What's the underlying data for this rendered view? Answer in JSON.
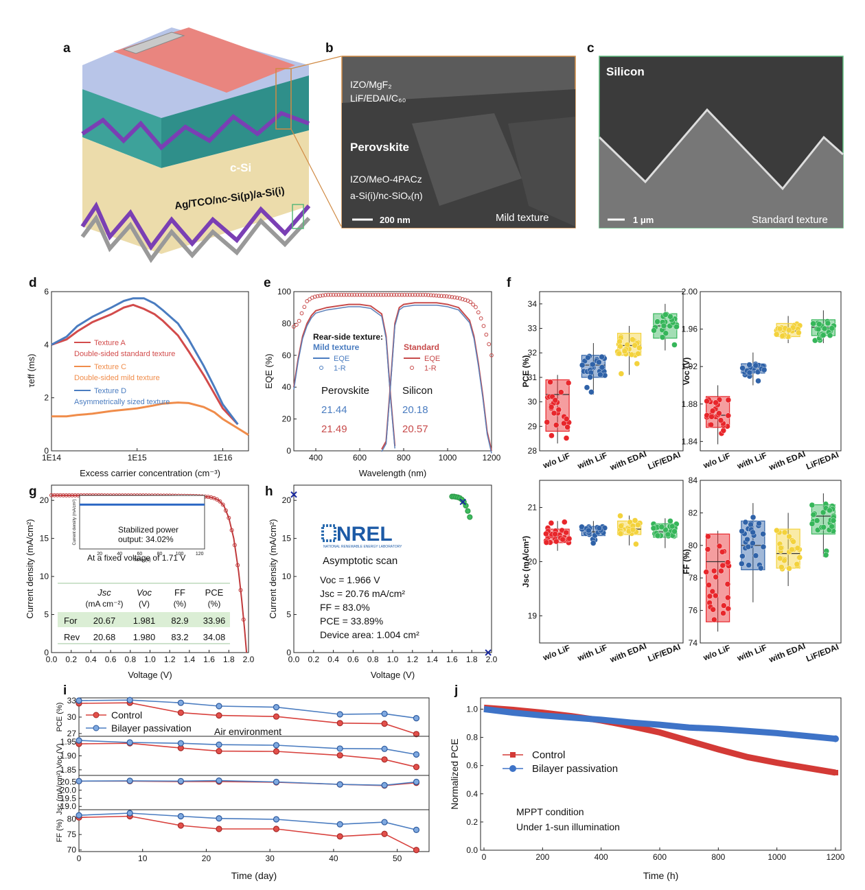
{
  "panels": {
    "a": {
      "letter": "a",
      "label_csi": "c-Si",
      "label_rear": "Ag/TCO/nc-Si(p)/a-Si(i)"
    },
    "b": {
      "letter": "b",
      "labels": [
        "IZO/MgF₂",
        "LiF/EDAI/C₆₀",
        "Perovskite",
        "IZO/MeO-4PACz",
        "a-Si(i)/nc-SiOₓ(n)"
      ],
      "scale": "200 nm",
      "caption": "Mild texture"
    },
    "c": {
      "letter": "c",
      "title": "Silicon",
      "scale": "1 μm",
      "caption": "Standard texture"
    }
  },
  "colors": {
    "red": "#d24b4b",
    "blue": "#4a7cc0",
    "orange": "#f08c4a",
    "navy": "#2d5a9e",
    "green": "#36b65a",
    "yellow": "#f3d23c",
    "lightgreen": "#dbeed5"
  },
  "chart_data": [
    {
      "id": "d",
      "letter": "d",
      "type": "line",
      "xlabel": "Excess carrier concentration (cm⁻³)",
      "ylabel": "τeff (ms)",
      "xscale": "log",
      "xlim": [
        100000000000000.0,
        2e+16
      ],
      "ylim": [
        0,
        6
      ],
      "xticks": [
        "1E14",
        "1E15",
        "1E16"
      ],
      "yticks": [
        "0",
        "2",
        "4",
        "6"
      ],
      "series": [
        {
          "name": "Texture A",
          "desc": "Double-sided standard texture",
          "color": "#d24b4b",
          "x": [
            100000000000000.0,
            150000000000000.0,
            200000000000000.0,
            300000000000000.0,
            500000000000000.0,
            700000000000000.0,
            900000000000000.0,
            1200000000000000.0,
            1600000000000000.0,
            2000000000000000.0,
            3000000000000000.0,
            4000000000000000.0,
            6000000000000000.0,
            8000000000000000.0,
            1e+16,
            1.5e+16
          ],
          "y": [
            4.0,
            4.2,
            4.5,
            4.85,
            5.15,
            5.4,
            5.5,
            5.35,
            5.15,
            4.9,
            4.35,
            3.75,
            2.85,
            2.15,
            1.6,
            1.0
          ]
        },
        {
          "name": "Texture C",
          "desc": "Double-sided mild texture",
          "color": "#f08c4a",
          "x": [
            100000000000000.0,
            150000000000000.0,
            200000000000000.0,
            300000000000000.0,
            500000000000000.0,
            700000000000000.0,
            1000000000000000.0,
            1500000000000000.0,
            2000000000000000.0,
            3000000000000000.0,
            4000000000000000.0,
            6000000000000000.0,
            8000000000000000.0,
            1e+16,
            1.5e+16,
            2e+16
          ],
          "y": [
            1.3,
            1.3,
            1.35,
            1.4,
            1.5,
            1.55,
            1.6,
            1.7,
            1.78,
            1.82,
            1.8,
            1.65,
            1.45,
            1.2,
            0.85,
            0.6
          ]
        },
        {
          "name": "Texture D",
          "desc": "Asymmetrically sized texture",
          "color": "#4a7cc0",
          "x": [
            100000000000000.0,
            150000000000000.0,
            200000000000000.0,
            300000000000000.0,
            500000000000000.0,
            700000000000000.0,
            900000000000000.0,
            1200000000000000.0,
            1600000000000000.0,
            2000000000000000.0,
            3000000000000000.0,
            4000000000000000.0,
            6000000000000000.0,
            8000000000000000.0,
            1e+16,
            1.5e+16
          ],
          "y": [
            4.0,
            4.3,
            4.7,
            5.05,
            5.4,
            5.65,
            5.75,
            5.75,
            5.55,
            5.3,
            4.8,
            4.2,
            3.2,
            2.4,
            1.75,
            1.0
          ]
        }
      ]
    },
    {
      "id": "e",
      "letter": "e",
      "type": "line",
      "xlabel": "Wavelength (nm)",
      "ylabel": "EQE (%)",
      "xlim": [
        300,
        1200
      ],
      "ylim": [
        0,
        100
      ],
      "xticks": [
        "400",
        "600",
        "800",
        "1000",
        "1200"
      ],
      "yticks": [
        "0",
        "20",
        "40",
        "60",
        "80",
        "100"
      ],
      "legend_title": "Rear-side texture:",
      "legend_mild": "Mild texture",
      "legend_standard": "Standard",
      "eqe_label": "EQE",
      "r_label": "1-R",
      "jsc_labels": {
        "perovskite": "Perovskite",
        "silicon": "Silicon",
        "perovskite_mild": "21.44",
        "perovskite_std": "21.49",
        "silicon_mild": "20.18",
        "silicon_std": "20.57"
      },
      "series": [
        {
          "name": "Perovskite EQE",
          "x": [
            300,
            320,
            340,
            360,
            380,
            400,
            450,
            500,
            550,
            600,
            650,
            700,
            720,
            740,
            760
          ],
          "y": [
            40,
            58,
            72,
            80,
            85,
            88,
            90,
            91,
            92,
            92,
            91,
            86,
            72,
            35,
            3
          ]
        },
        {
          "name": "Silicon EQE",
          "x": [
            700,
            720,
            740,
            760,
            780,
            800,
            850,
            900,
            950,
            1000,
            1050,
            1100,
            1120,
            1140,
            1160,
            1180,
            1200
          ],
          "y": [
            1,
            6,
            42,
            80,
            90,
            92,
            93,
            93,
            93,
            92,
            90,
            82,
            72,
            55,
            35,
            12,
            0
          ]
        },
        {
          "name": "1-R",
          "x": [
            300,
            320,
            340,
            360,
            380,
            400,
            450,
            500,
            600,
            700,
            800,
            900,
            1000,
            1050,
            1100,
            1130,
            1150,
            1170,
            1190,
            1200
          ],
          "y": [
            78,
            80,
            88,
            94,
            96,
            97,
            98,
            98,
            98,
            98,
            98,
            98,
            97,
            96,
            94,
            90,
            84,
            76,
            66,
            60
          ]
        }
      ]
    },
    {
      "id": "f",
      "letter": "f",
      "type": "box",
      "categories": [
        "w/o LiF",
        "with LiF",
        "with EDAI",
        "LiF/EDAI"
      ],
      "colors": [
        "#e8262b",
        "#2f62a8",
        "#f3d23c",
        "#36b65a"
      ],
      "subplots": [
        {
          "ylabel": "PCE (%)",
          "ylim": [
            28,
            34.5
          ],
          "yticks": [
            "28",
            "29",
            "30",
            "31",
            "32",
            "33",
            "34"
          ],
          "boxes": [
            {
              "min": 28.3,
              "q1": 28.8,
              "med": 30.3,
              "q3": 30.9,
              "max": 31.1
            },
            {
              "min": 30.3,
              "q1": 31.0,
              "med": 31.5,
              "q3": 31.9,
              "max": 32.4
            },
            {
              "min": 31.1,
              "q1": 31.9,
              "med": 32.3,
              "q3": 32.8,
              "max": 33.1
            },
            {
              "min": 32.1,
              "q1": 32.6,
              "med": 33.1,
              "q3": 33.6,
              "max": 34.0
            }
          ]
        },
        {
          "ylabel": "Voc (V)",
          "ylim": [
            1.83,
            2.0
          ],
          "yticks": [
            "1.84",
            "1.88",
            "1.92",
            "1.96",
            "2.00"
          ],
          "boxes": [
            {
              "min": 1.837,
              "q1": 1.855,
              "med": 1.868,
              "q3": 1.888,
              "max": 1.9
            },
            {
              "min": 1.9,
              "q1": 1.913,
              "med": 1.918,
              "q3": 1.923,
              "max": 1.935
            },
            {
              "min": 1.945,
              "q1": 1.952,
              "med": 1.958,
              "q3": 1.966,
              "max": 1.974
            },
            {
              "min": 1.945,
              "q1": 1.953,
              "med": 1.962,
              "q3": 1.97,
              "max": 1.98
            }
          ]
        },
        {
          "ylabel": "Jsc (mA/cm²)",
          "ylim": [
            18.5,
            21.5
          ],
          "yticks": [
            "19",
            "20",
            "21"
          ],
          "boxes": [
            {
              "min": 20.2,
              "q1": 20.35,
              "med": 20.45,
              "q3": 20.6,
              "max": 20.75
            },
            {
              "min": 20.3,
              "q1": 20.48,
              "med": 20.55,
              "q3": 20.65,
              "max": 20.75
            },
            {
              "min": 20.3,
              "q1": 20.5,
              "med": 20.6,
              "q3": 20.75,
              "max": 20.85
            },
            {
              "min": 20.25,
              "q1": 20.45,
              "med": 20.55,
              "q3": 20.7,
              "max": 20.8
            }
          ]
        },
        {
          "ylabel": "FF (%)",
          "ylim": [
            74,
            84
          ],
          "yticks": [
            "74",
            "76",
            "78",
            "80",
            "82",
            "84"
          ],
          "boxes": [
            {
              "min": 74.7,
              "q1": 75.3,
              "med": 79.0,
              "q3": 80.7,
              "max": 80.9
            },
            {
              "min": 76.5,
              "q1": 78.5,
              "med": 80.0,
              "q3": 81.5,
              "max": 82.6
            },
            {
              "min": 77.5,
              "q1": 78.6,
              "med": 79.5,
              "q3": 81.0,
              "max": 82.0
            },
            {
              "min": 79.3,
              "q1": 80.7,
              "med": 81.8,
              "q3": 82.5,
              "max": 83.2
            }
          ]
        }
      ]
    },
    {
      "id": "g",
      "letter": "g",
      "type": "line",
      "xlabel": "Voltage (V)",
      "ylabel": "Current density (mA/cm²)",
      "xlim": [
        0,
        2.0
      ],
      "ylim": [
        0,
        22
      ],
      "xticks": [
        "0.0",
        "0.2",
        "0.4",
        "0.6",
        "0.8",
        "1.0",
        "1.2",
        "1.4",
        "1.6",
        "1.8",
        "2.0"
      ],
      "yticks": [
        "0",
        "5",
        "10",
        "15",
        "20"
      ],
      "jv": {
        "x": [
          0,
          0.2,
          0.4,
          0.6,
          0.8,
          1.0,
          1.2,
          1.4,
          1.5,
          1.6,
          1.65,
          1.7,
          1.75,
          1.8,
          1.85,
          1.9,
          1.93,
          1.96,
          1.98
        ],
        "y": [
          20.67,
          20.66,
          20.66,
          20.65,
          20.65,
          20.64,
          20.62,
          20.58,
          20.54,
          20.45,
          20.3,
          20.0,
          19.3,
          17.7,
          15.0,
          10.6,
          7.0,
          3.0,
          0
        ]
      },
      "inset": {
        "title": "Stabilized power output: 34.02%",
        "note": "At a fixed voltage of 1.71 V",
        "xlabel": "Time (s)",
        "ylabel": "Current density (mA/cm²)",
        "xticks": [
          "20",
          "40",
          "60",
          "80",
          "100",
          "120"
        ],
        "value": 19.9
      },
      "table": {
        "headers": [
          "Jsc (mA cm⁻²)",
          "Voc (V)",
          "FF (%)",
          "PCE (%)"
        ],
        "rows": [
          [
            "For",
            "20.67",
            "1.981",
            "82.9",
            "33.96"
          ],
          [
            "Rev",
            "20.68",
            "1.980",
            "83.2",
            "34.08"
          ]
        ]
      }
    },
    {
      "id": "h",
      "letter": "h",
      "type": "scatter",
      "xlabel": "Voltage (V)",
      "ylabel": "Current density (mA/cm²)",
      "xlim": [
        0,
        2.0
      ],
      "ylim": [
        0,
        22
      ],
      "xticks": [
        "0.0",
        "0.2",
        "0.4",
        "0.6",
        "0.8",
        "1.0",
        "1.2",
        "1.4",
        "1.6",
        "1.8",
        "2.0"
      ],
      "yticks": [
        "0",
        "5",
        "10",
        "15",
        "20"
      ],
      "logo": "NREL",
      "logo_sub": "NATIONAL RENEWABLE ENERGY LABORATORY",
      "scan": "Asymptotic scan",
      "metrics": [
        "Voc = 1.966 V",
        "Jsc = 20.76 mA/cm²",
        "FF = 83.0%",
        "PCE = 33.89%",
        "Device area: 1.004 cm²"
      ],
      "points": {
        "x": [
          1.6,
          1.62,
          1.64,
          1.66,
          1.68,
          1.7,
          1.72,
          1.74,
          1.76,
          1.78
        ],
        "y": [
          20.5,
          20.5,
          20.45,
          20.4,
          20.3,
          20.1,
          19.8,
          19.3,
          18.6,
          17.8
        ]
      },
      "markers": {
        "x": [
          0,
          1.71,
          1.966
        ],
        "y": [
          20.76,
          19.8,
          0
        ]
      }
    },
    {
      "id": "i",
      "letter": "i",
      "type": "line",
      "xlabel": "Time (day)",
      "x": [
        0,
        8,
        16,
        22,
        31,
        41,
        48,
        53
      ],
      "xticks": [
        "0",
        "10",
        "20",
        "30",
        "40",
        "50"
      ],
      "legend": [
        "Control",
        "Bilayer passivation"
      ],
      "note": "Air environment",
      "subplots": [
        {
          "ylabel": "PCE (%)",
          "ylim": [
            26.5,
            33.5
          ],
          "yticks": [
            "27",
            "30",
            "33"
          ],
          "control": [
            32.5,
            32.6,
            30.8,
            30.3,
            30.1,
            28.9,
            28.8,
            26.9
          ],
          "bilayer": [
            33.0,
            33.1,
            32.6,
            32.0,
            31.8,
            30.5,
            30.6,
            29.8
          ]
        },
        {
          "ylabel": "Voc (V)",
          "ylim": [
            1.83,
            1.97
          ],
          "yticks": [
            "1.85",
            "1.90",
            "1.95"
          ],
          "control": [
            1.943,
            1.945,
            1.928,
            1.917,
            1.916,
            1.902,
            1.887,
            1.86
          ],
          "bilayer": [
            1.955,
            1.948,
            1.945,
            1.94,
            1.938,
            1.926,
            1.925,
            1.905
          ]
        },
        {
          "ylabel": "Jsc (mA/cm²)",
          "ylim": [
            18.8,
            20.9
          ],
          "yticks": [
            "19.0",
            "19.5",
            "20.0",
            "20.5"
          ],
          "control": [
            20.55,
            20.55,
            20.52,
            20.52,
            20.48,
            20.35,
            20.28,
            20.45
          ],
          "bilayer": [
            20.55,
            20.57,
            20.55,
            20.58,
            20.5,
            20.35,
            20.3,
            20.5
          ]
        },
        {
          "ylabel": "FF (%)",
          "ylim": [
            69.5,
            83
          ],
          "yticks": [
            "70",
            "75",
            "80"
          ],
          "control": [
            80.5,
            80.9,
            77.9,
            76.8,
            76.8,
            74.4,
            75.2,
            70.0
          ],
          "bilayer": [
            81.2,
            81.9,
            80.9,
            80.2,
            79.9,
            78.3,
            79.0,
            76.5
          ]
        }
      ]
    },
    {
      "id": "j",
      "letter": "j",
      "type": "line",
      "xlabel": "Time (h)",
      "ylabel": "Normalized PCE",
      "xlim": [
        0,
        1200
      ],
      "ylim": [
        0,
        1.08
      ],
      "xticks": [
        "0",
        "200",
        "400",
        "600",
        "800",
        "1000",
        "1200"
      ],
      "yticks": [
        "0.0",
        "0.2",
        "0.4",
        "0.6",
        "0.8",
        "1.0"
      ],
      "legend": [
        "Control",
        "Bilayer passivation"
      ],
      "notes": [
        "MPPT condition",
        "Under 1-sun illumination"
      ],
      "series": [
        {
          "name": "Control",
          "color": "#d33a36",
          "x": [
            0,
            100,
            200,
            300,
            400,
            500,
            600,
            700,
            800,
            900,
            1000,
            1100,
            1200
          ],
          "y": [
            1.01,
            0.995,
            0.975,
            0.95,
            0.92,
            0.88,
            0.835,
            0.775,
            0.715,
            0.66,
            0.62,
            0.585,
            0.55
          ]
        },
        {
          "name": "Bilayer passivation",
          "color": "#3e73c7",
          "x": [
            0,
            100,
            200,
            300,
            400,
            500,
            600,
            700,
            800,
            900,
            1000,
            1100,
            1200
          ],
          "y": [
            1.0,
            0.975,
            0.955,
            0.94,
            0.925,
            0.905,
            0.89,
            0.87,
            0.86,
            0.845,
            0.83,
            0.81,
            0.79
          ]
        }
      ]
    }
  ]
}
